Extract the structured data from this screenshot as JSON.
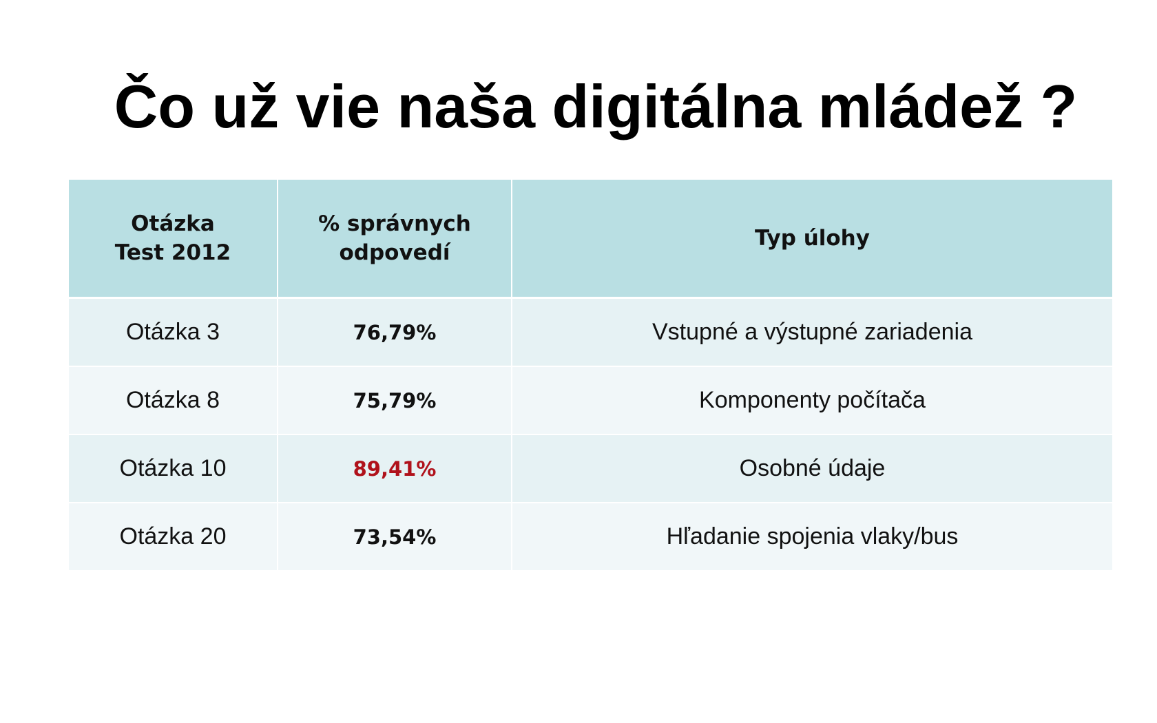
{
  "title": "Čo už vie naša digitálna mládež ?",
  "table": {
    "headers": [
      {
        "line1": "Otázka",
        "line2": "Test 2012"
      },
      {
        "line1": "% správnych",
        "line2": "odpovedí"
      },
      {
        "line1": "Typ úlohy",
        "line2": ""
      }
    ],
    "rows": [
      {
        "question": "Otázka 3",
        "percent": "76,79%",
        "type": "Vstupné a výstupné zariadenia"
      },
      {
        "question": "Otázka 8",
        "percent": "75,79%",
        "type": "Komponenty počítača"
      },
      {
        "question": "Otázka 10",
        "percent": "89,41%",
        "type": "Osobné údaje"
      },
      {
        "question": "Otázka 20",
        "percent": "73,54%",
        "type": "Hľadanie spojenia vlaky/bus"
      }
    ]
  },
  "colors": {
    "header_bg": "#b9dfe3",
    "row_odd_bg": "#e6f2f4",
    "row_even_bg": "#f1f7f9",
    "highlight_text": "#b0121b"
  }
}
